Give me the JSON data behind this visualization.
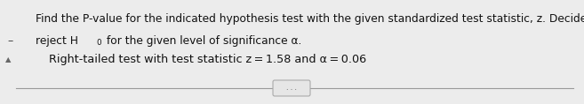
{
  "line1": "Find the P-value for the indicated hypothesis test with the given standardized test statistic, z. Decide whether to",
  "line2_prefix": "reject H",
  "line2_sub": "0",
  "line2_suffix": " for the given level of significance α.",
  "body_line": "Right-tailed test with test statistic z = 1.58 and α = 0.06",
  "bg_color": "#ececec",
  "text_color": "#111111",
  "font_size_main": 8.8,
  "font_size_body": 9.2,
  "dots_text": ". . ."
}
